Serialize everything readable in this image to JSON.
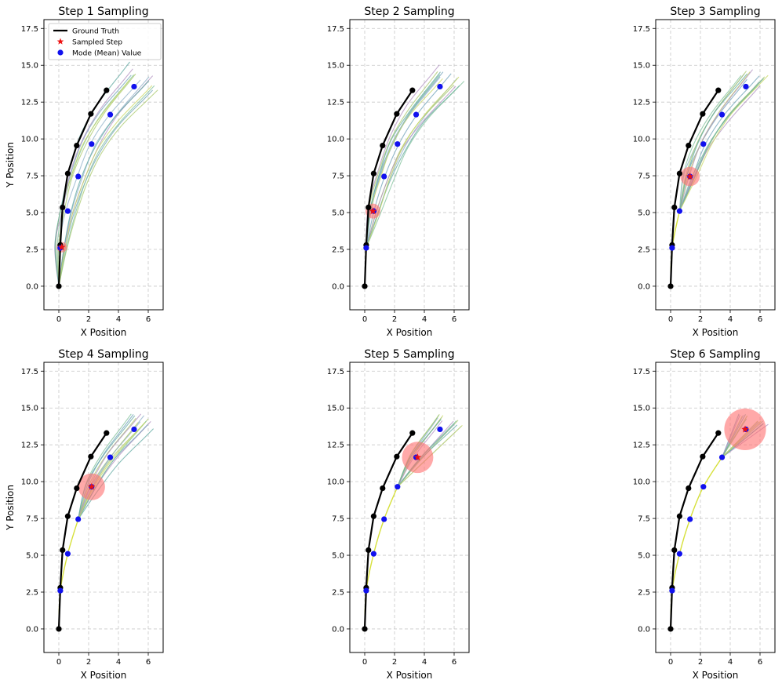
{
  "chart_data": {
    "type": "line",
    "shared": {
      "xlabel": "X Position",
      "ylabel": "Y Position",
      "xlim": [
        -1,
        7
      ],
      "ylim": [
        -1.6,
        18.1
      ],
      "xticks": [
        0,
        2,
        4,
        6
      ],
      "yticks": [
        0.0,
        2.5,
        5.0,
        7.5,
        10.0,
        12.5,
        15.0,
        17.5
      ],
      "grid": true,
      "legend": {
        "placement": "top-left",
        "entries": [
          "Ground Truth",
          "Sampled Step",
          "Mode (Mean) Value"
        ]
      },
      "colors": {
        "ground_truth": "#000000",
        "sampled_step": "#ee1111",
        "mode": "#1111ee",
        "uncertainty": "#ff7070",
        "path": "#d6e03a",
        "samples": [
          "#8fb0c8",
          "#6fa0b8",
          "#a8c86a",
          "#7fc09a",
          "#b090c0",
          "#c8d860",
          "#5fa8a0"
        ]
      }
    },
    "ground_truth": {
      "x": [
        0.0,
        0.1,
        0.25,
        0.6,
        1.2,
        2.15,
        3.2
      ],
      "y": [
        0.0,
        2.8,
        5.35,
        7.65,
        9.55,
        11.7,
        13.3
      ]
    },
    "mode": {
      "x": [
        0.1,
        0.6,
        1.3,
        2.2,
        3.45,
        5.05
      ],
      "y": [
        2.6,
        5.1,
        7.45,
        9.65,
        11.65,
        13.55
      ]
    },
    "panels": [
      {
        "title": "Step 1 Sampling",
        "step": 1,
        "sampled": [
          0.2,
          2.65
        ],
        "radius": 0.35
      },
      {
        "title": "Step 2 Sampling",
        "step": 2,
        "sampled": [
          0.55,
          5.1
        ],
        "radius": 0.5
      },
      {
        "title": "Step 3 Sampling",
        "step": 3,
        "sampled": [
          1.3,
          7.45
        ],
        "radius": 0.65
      },
      {
        "title": "Step 4 Sampling",
        "step": 4,
        "sampled": [
          2.2,
          9.65
        ],
        "radius": 0.9
      },
      {
        "title": "Step 5 Sampling",
        "step": 5,
        "sampled": [
          3.55,
          11.65
        ],
        "radius": 1.05
      },
      {
        "title": "Step 6 Sampling",
        "step": 6,
        "sampled": [
          5.0,
          13.55
        ],
        "radius": 1.4
      }
    ]
  }
}
